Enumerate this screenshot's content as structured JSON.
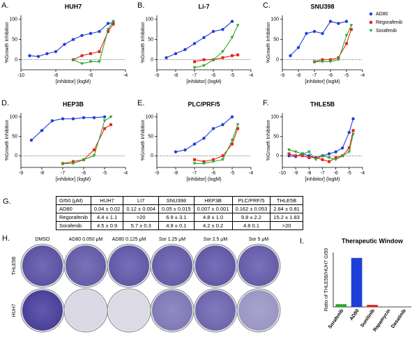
{
  "chart_data": [
    {
      "type": "line",
      "label": "A.",
      "title": "HUH7",
      "xlabel": "[inhibitor] (logM)",
      "ylabel": "%Growth Inhibition",
      "xlim": [
        -10,
        -4
      ],
      "xticks": [
        -10,
        -8,
        -6,
        -4
      ],
      "ylim": [
        -25,
        110
      ],
      "yticks": [
        0,
        50,
        100
      ],
      "legend": "right",
      "series": [
        {
          "name": "AD80",
          "color": "#1f3fd9",
          "marker": "circle",
          "x": [
            -9.5,
            -9,
            -8.5,
            -8,
            -7.5,
            -7,
            -6.5,
            -6,
            -5.5,
            -5,
            -4.7
          ],
          "values": [
            10,
            8,
            15,
            20,
            38,
            50,
            60,
            65,
            70,
            90,
            92
          ]
        },
        {
          "name": "Regorafenib",
          "color": "#e8221b",
          "marker": "square",
          "x": [
            -7,
            -6.5,
            -6,
            -5.5,
            -5,
            -4.7
          ],
          "values": [
            0,
            10,
            15,
            20,
            70,
            88
          ]
        },
        {
          "name": "Sorafenib",
          "color": "#2ca82c",
          "marker": "triangle",
          "x": [
            -7,
            -6.5,
            -6,
            -5.5,
            -5,
            -4.7
          ],
          "values": [
            0,
            -10,
            -5,
            -5,
            75,
            95
          ]
        }
      ]
    },
    {
      "type": "line",
      "label": "B.",
      "title": "Li-7",
      "xlabel": "[inhibitor] (logM)",
      "ylabel": "%Growth Inhibition",
      "xlim": [
        -9,
        -4
      ],
      "xticks": [
        -9,
        -8,
        -7,
        -6,
        -5,
        -4
      ],
      "ylim": [
        -25,
        110
      ],
      "yticks": [
        0,
        50,
        100
      ],
      "series": [
        {
          "name": "AD80",
          "color": "#1f3fd9",
          "marker": "circle",
          "x": [
            -8.5,
            -8,
            -7.5,
            -7,
            -6.5,
            -6,
            -5.5,
            -5
          ],
          "values": [
            5,
            15,
            25,
            40,
            55,
            70,
            75,
            95
          ]
        },
        {
          "name": "Regorafenib",
          "color": "#e8221b",
          "marker": "square",
          "x": [
            -7,
            -6.5,
            -6,
            -5.5,
            -5,
            -4.7
          ],
          "values": [
            -5,
            0,
            0,
            5,
            10,
            12
          ]
        },
        {
          "name": "Sorafenib",
          "color": "#2ca82c",
          "marker": "triangle",
          "x": [
            -7,
            -6.5,
            -6,
            -5.5,
            -5,
            -4.7
          ],
          "values": [
            -20,
            -15,
            0,
            20,
            55,
            85
          ]
        }
      ]
    },
    {
      "type": "line",
      "label": "C.",
      "title": "SNU398",
      "xlabel": "[inhibitor] (logM)",
      "ylabel": "%Growth Inhibition",
      "xlim": [
        -9,
        -4
      ],
      "xticks": [
        -9,
        -8,
        -7,
        -6,
        -5,
        -4
      ],
      "ylim": [
        -25,
        110
      ],
      "yticks": [
        0,
        50,
        100
      ],
      "series": [
        {
          "name": "AD80",
          "color": "#1f3fd9",
          "marker": "circle",
          "x": [
            -8.5,
            -8,
            -7.5,
            -7,
            -6.5,
            -6,
            -5.5,
            -5
          ],
          "values": [
            10,
            30,
            65,
            70,
            65,
            95,
            90,
            95
          ]
        },
        {
          "name": "Regorafenib",
          "color": "#e8221b",
          "marker": "square",
          "x": [
            -7,
            -6.5,
            -6,
            -5.5,
            -5,
            -4.7
          ],
          "values": [
            -5,
            0,
            0,
            5,
            40,
            75
          ]
        },
        {
          "name": "Sorafenib",
          "color": "#2ca82c",
          "marker": "triangle",
          "x": [
            -7,
            -6.5,
            -6,
            -5.5,
            -5,
            -4.7
          ],
          "values": [
            -5,
            -5,
            -5,
            0,
            60,
            85
          ]
        }
      ]
    },
    {
      "type": "line",
      "label": "D.",
      "title": "HEP3B",
      "xlabel": "[inhibitor] (logM)",
      "ylabel": "%Growth Inhibition",
      "xlim": [
        -9,
        -4
      ],
      "xticks": [
        -9,
        -8,
        -7,
        -6,
        -5,
        -4
      ],
      "ylim": [
        -30,
        110
      ],
      "yticks": [
        0,
        50,
        100
      ],
      "series": [
        {
          "name": "AD80",
          "color": "#1f3fd9",
          "marker": "circle",
          "x": [
            -8.5,
            -8,
            -7.5,
            -7,
            -6.5,
            -6,
            -5.5,
            -5
          ],
          "values": [
            40,
            65,
            90,
            95,
            95,
            98,
            98,
            100
          ]
        },
        {
          "name": "Regorafenib",
          "color": "#e8221b",
          "marker": "square",
          "x": [
            -7,
            -6.5,
            -6,
            -5.5,
            -5,
            -4.7
          ],
          "values": [
            -20,
            -15,
            -10,
            15,
            70,
            80
          ]
        },
        {
          "name": "Sorafenib",
          "color": "#2ca82c",
          "marker": "triangle",
          "x": [
            -7,
            -6.5,
            -6,
            -5.5,
            -5,
            -4.7
          ],
          "values": [
            -20,
            -20,
            -10,
            0,
            90,
            100
          ]
        }
      ]
    },
    {
      "type": "line",
      "label": "E.",
      "title": "PLC/PRF/5",
      "xlabel": "[inhibitor] (logM)",
      "ylabel": "%Growth Inhibition",
      "xlim": [
        -9,
        -4
      ],
      "xticks": [
        -9,
        -8,
        -7,
        -6,
        -5,
        -4
      ],
      "ylim": [
        -30,
        110
      ],
      "yticks": [
        0,
        50,
        100
      ],
      "series": [
        {
          "name": "AD80",
          "color": "#1f3fd9",
          "marker": "circle",
          "x": [
            -8,
            -7.5,
            -7,
            -6.5,
            -6,
            -5.5,
            -5
          ],
          "values": [
            10,
            15,
            30,
            45,
            70,
            80,
            100
          ]
        },
        {
          "name": "Regorafenib",
          "color": "#e8221b",
          "marker": "square",
          "x": [
            -7,
            -6.5,
            -6,
            -5.5,
            -5,
            -4.7
          ],
          "values": [
            -10,
            -15,
            -10,
            0,
            30,
            70
          ]
        },
        {
          "name": "Sorafenib",
          "color": "#2ca82c",
          "marker": "triangle",
          "x": [
            -7,
            -6.5,
            -6,
            -5.5,
            -5,
            -4.7
          ],
          "values": [
            -20,
            -20,
            -15,
            -10,
            40,
            80
          ]
        }
      ]
    },
    {
      "type": "line",
      "label": "F.",
      "title": "THLE5B",
      "xlabel": "[inhibitor] (logM)",
      "ylabel": "%Growth Inhibition",
      "xlim": [
        -10,
        -4
      ],
      "xticks": [
        -10,
        -9,
        -8,
        -7,
        -6,
        -5,
        -4
      ],
      "ylim": [
        -30,
        110
      ],
      "yticks": [
        0,
        50,
        100
      ],
      "series": [
        {
          "name": "AD80",
          "color": "#1f3fd9",
          "marker": "circle",
          "x": [
            -9.5,
            -9,
            -8.5,
            -8,
            -7.5,
            -7,
            -6.5,
            -6,
            -5.5,
            -5,
            -4.7
          ],
          "values": [
            0,
            -2,
            5,
            0,
            -5,
            0,
            5,
            10,
            20,
            60,
            95
          ]
        },
        {
          "name": "Regorafenib",
          "color": "#e8221b",
          "marker": "square",
          "x": [
            -9.5,
            -9,
            -8.5,
            -8,
            -7.5,
            -7,
            -6.5,
            -6,
            -5.5,
            -5,
            -4.7
          ],
          "values": [
            5,
            0,
            0,
            -5,
            -5,
            -10,
            -15,
            -5,
            0,
            20,
            65
          ]
        },
        {
          "name": "Sorafenib",
          "color": "#2ca82c",
          "marker": "triangle",
          "x": [
            -9.5,
            -9,
            -8.5,
            -8,
            -7.5,
            -7,
            -6.5,
            -6,
            -5.5,
            -5,
            -4.7
          ],
          "values": [
            15,
            10,
            5,
            10,
            -10,
            0,
            -5,
            -10,
            0,
            10,
            55
          ]
        }
      ]
    },
    {
      "type": "bar",
      "label": "I.",
      "title": "Therapeutic Window",
      "ylabel": "Ratio of THLE5B/HUH7 GI50",
      "categories": [
        "Sorafenib",
        "AD80",
        "Sunitinib",
        "Rapamycin",
        "Dasatinib"
      ],
      "values": [
        4,
        72,
        3,
        0.3,
        0.3
      ],
      "colors": [
        "#2ca82c",
        "#1f3fd9",
        "#e8221b",
        "#555555",
        "#555555"
      ],
      "ylim": [
        0,
        80
      ]
    }
  ],
  "table": {
    "label": "G.",
    "header": [
      "GI50 (μM)",
      "HUH7",
      "LI7",
      "SNU398",
      "HEP3B",
      "PLC/PRF/5",
      "THLE5B"
    ],
    "rows": [
      [
        "AD80",
        "0.04 ± 0.02",
        "0.12 ± 0.004",
        "0.05 ± 0.015",
        "0.007 ± 0.001",
        "0.162 ± 0.053",
        "2.84 ± 0.81"
      ],
      [
        "Regorafenib",
        "4.4 ± 1.1",
        ">20",
        "6.9 ± 3.1",
        "4.8 ± 1.0",
        "9.8 ± 2.2",
        "15.2 ± 1.83"
      ],
      [
        "Sorafenib",
        "4.5 ± 0.9",
        "5.7 ± 0.3",
        "4.9 ± 0.1",
        "4.2 ± 0.2",
        "4.8 0.1",
        ">20"
      ]
    ]
  },
  "plates": {
    "label": "H.",
    "columns": [
      "DMSO",
      "AD80 0.050 μM",
      "AD80 0.125 μM",
      "Sor 1.25 μM",
      "Sor 2.5 μM",
      "Sor 5 μM"
    ],
    "rows": [
      "THLE5B",
      "HUH7"
    ]
  }
}
